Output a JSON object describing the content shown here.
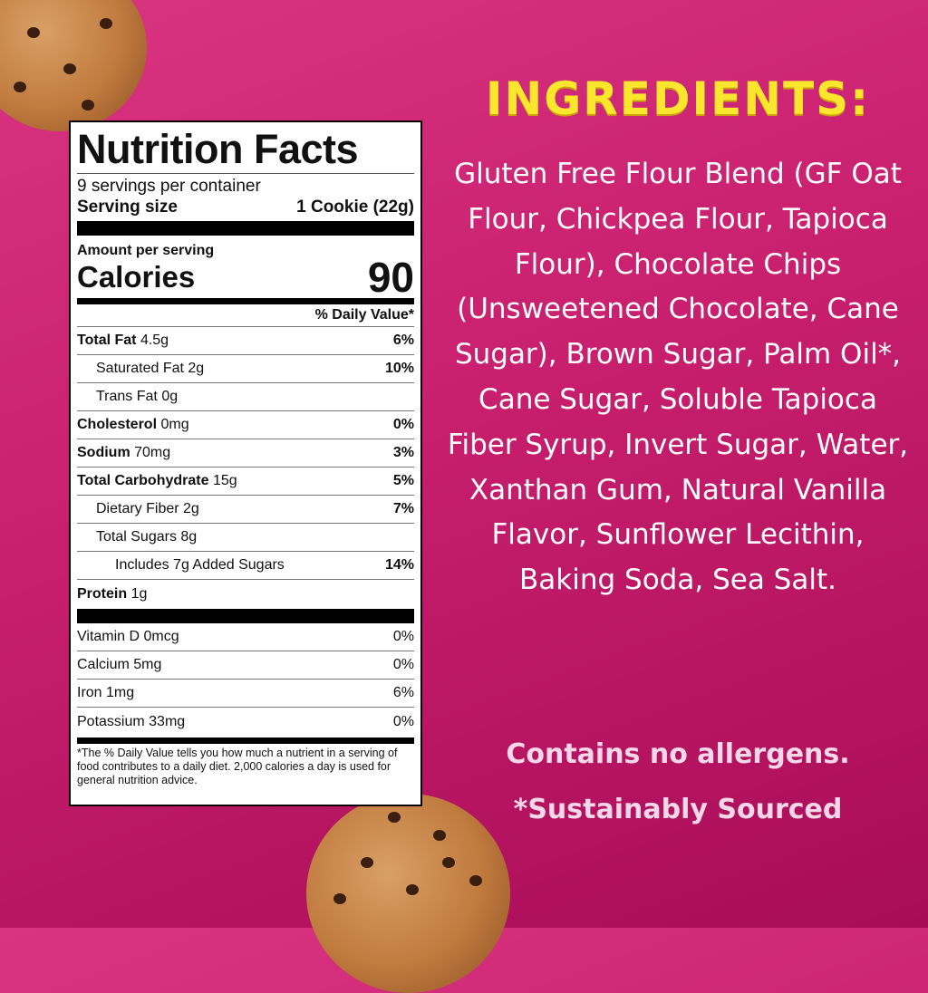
{
  "colors": {
    "background": "#c81f6e",
    "title": "#fbe62e",
    "text": "#ffffff"
  },
  "label": {
    "title": "Nutrition Facts",
    "servings": "9 servings per container",
    "serving_size_label": "Serving size",
    "serving_size_value": "1 Cookie (22g)",
    "amount_per_serving": "Amount per serving",
    "calories_label": "Calories",
    "calories_value": "90",
    "dv_header": "% Daily Value*",
    "nutrients": [
      {
        "name": "Total Fat",
        "amount": "4.5g",
        "dv": "6%"
      },
      {
        "name": "Saturated Fat",
        "amount": "2g",
        "dv": "10%"
      },
      {
        "name": "Trans Fat",
        "amount": "0g",
        "dv": ""
      },
      {
        "name": "Cholesterol",
        "amount": "0mg",
        "dv": "0%"
      },
      {
        "name": "Sodium",
        "amount": "70mg",
        "dv": "3%"
      },
      {
        "name": "Total Carbohydrate",
        "amount": "15g",
        "dv": "5%"
      },
      {
        "name": "Dietary Fiber",
        "amount": "2g",
        "dv": "7%"
      },
      {
        "name": "Total Sugars",
        "amount": "8g",
        "dv": ""
      },
      {
        "name": "Includes 7g Added Sugars",
        "amount": "",
        "dv": "14%"
      },
      {
        "name": "Protein",
        "amount": "1g",
        "dv": ""
      }
    ],
    "vitamins": [
      {
        "name": "Vitamin D 0mcg",
        "dv": "0%"
      },
      {
        "name": "Calcium 5mg",
        "dv": "0%"
      },
      {
        "name": "Iron 1mg",
        "dv": "6%"
      },
      {
        "name": "Potassium 33mg",
        "dv": "0%"
      }
    ],
    "footnote": "*The % Daily Value tells you how much a nutrient in a serving of food contributes to a daily diet. 2,000 calories a day is used for general nutrition advice."
  },
  "ingredients": {
    "title": "INGREDIENTS:",
    "text": "Gluten Free Flour Blend (GF Oat Flour, Chickpea Flour, Tapioca Flour), Chocolate Chips (Unsweetened Chocolate, Cane Sugar), Brown Sugar, Palm Oil*, Cane Sugar, Soluble Tapioca Fiber Syrup, Invert Sugar, Water, Xanthan Gum, Natural Vanilla Flavor, Sunflower Lecithin, Baking Soda, Sea Salt.",
    "allergens": "Contains no allergens.",
    "sustainably": "*Sustainably Sourced"
  }
}
